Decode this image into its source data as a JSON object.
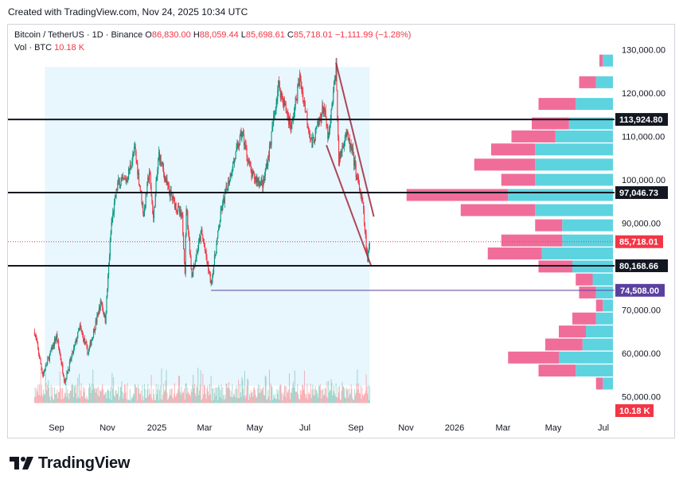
{
  "header": {
    "created": "Created with TradingView.com, Nov 24, 2025 10:34 UTC"
  },
  "legend": {
    "symbol": "Bitcoin / TetherUS · 1D · Binance",
    "o_label": "O",
    "o": "86,830.00",
    "h_label": "H",
    "h": "88,059.44",
    "l_label": "L",
    "l": "85,698.61",
    "c_label": "C",
    "c": "85,718.01",
    "change": "−1,111.99 (−1.28%)",
    "vol_label": "Vol · BTC",
    "vol": "10.18 K"
  },
  "colors": {
    "up": "#089981",
    "down": "#f23645",
    "profile_up": "#5ed3e0",
    "profile_down": "#f06d9a",
    "range_bg": "#e8f6fd"
  },
  "chart_data": {
    "type": "candlestick",
    "title": "Bitcoin / TetherUS · 1D · Binance",
    "xlabel": "",
    "ylabel": "",
    "x_ticks": [
      "Sep",
      "Nov",
      "2025",
      "Mar",
      "May",
      "Jul",
      "Sep",
      "Nov",
      "2026",
      "Mar",
      "May",
      "Jul"
    ],
    "y_ticks": [
      "130,000.00",
      "120,000.00",
      "110,000.00",
      "100,000.00",
      "90,000.00",
      "70,000.00",
      "60,000.00",
      "50,000.00"
    ],
    "ylim": [
      48000,
      132000
    ],
    "price_path": [
      [
        "2024-07-24",
        65000
      ],
      [
        "2024-08-05",
        55000
      ],
      [
        "2024-08-25",
        64000
      ],
      [
        "2024-09-06",
        53500
      ],
      [
        "2024-09-28",
        66000
      ],
      [
        "2024-10-10",
        60000
      ],
      [
        "2024-10-29",
        72000
      ],
      [
        "2024-11-04",
        67500
      ],
      [
        "2024-11-13",
        90000
      ],
      [
        "2024-11-22",
        99000
      ],
      [
        "2024-12-05",
        100000
      ],
      [
        "2024-12-17",
        107000
      ],
      [
        "2024-12-30",
        92000
      ],
      [
        "2025-01-07",
        102000
      ],
      [
        "2025-01-13",
        91000
      ],
      [
        "2025-01-21",
        106000
      ],
      [
        "2025-02-03",
        98000
      ],
      [
        "2025-02-24",
        91000
      ],
      [
        "2025-02-28",
        79000
      ],
      [
        "2025-03-02",
        94000
      ],
      [
        "2025-03-10",
        78000
      ],
      [
        "2025-03-24",
        88000
      ],
      [
        "2025-04-07",
        76000
      ],
      [
        "2025-04-22",
        93000
      ],
      [
        "2025-05-08",
        103000
      ],
      [
        "2025-05-22",
        111000
      ],
      [
        "2025-06-05",
        101000
      ],
      [
        "2025-06-22",
        99000
      ],
      [
        "2025-07-03",
        109000
      ],
      [
        "2025-07-14",
        122000
      ],
      [
        "2025-08-02",
        112000
      ],
      [
        "2025-08-14",
        123500
      ],
      [
        "2025-09-01",
        108000
      ],
      [
        "2025-09-18",
        117000
      ],
      [
        "2025-09-25",
        109000
      ],
      [
        "2025-10-06",
        126000
      ],
      [
        "2025-10-10",
        104000
      ],
      [
        "2025-10-20",
        111000
      ],
      [
        "2025-10-30",
        106000
      ],
      [
        "2025-11-05",
        101000
      ],
      [
        "2025-11-14",
        94000
      ],
      [
        "2025-11-21",
        81000
      ],
      [
        "2025-11-24",
        85718
      ]
    ],
    "levels": [
      {
        "label": "113,924.80",
        "value": 113924.8
      },
      {
        "label": "97,046.73",
        "value": 97046.73
      },
      {
        "label": "80,168.66",
        "value": 80168.66
      },
      {
        "label": "74,508.00",
        "value": 74508
      }
    ],
    "last_price": {
      "label": "85,718.01",
      "value": 85718.01
    },
    "last_volume": {
      "label": "10.18 K",
      "value": 10.18
    },
    "volume_profile": [
      {
        "price": 127500,
        "up": 1.5,
        "down": 0.5
      },
      {
        "price": 122500,
        "up": 2.5,
        "down": 2.5
      },
      {
        "price": 117500,
        "up": 5.5,
        "down": 5.5
      },
      {
        "price": 113000,
        "up": 6.5,
        "down": 5.5
      },
      {
        "price": 110000,
        "up": 8.5,
        "down": 6.5
      },
      {
        "price": 107000,
        "up": 11.5,
        "down": 6.5
      },
      {
        "price": 103500,
        "up": 11.5,
        "down": 9.0
      },
      {
        "price": 100000,
        "up": 11.5,
        "down": 5.0
      },
      {
        "price": 96500,
        "up": 15.5,
        "down": 15.0
      },
      {
        "price": 93000,
        "up": 11.5,
        "down": 11.0
      },
      {
        "price": 89500,
        "up": 7.5,
        "down": 4.0
      },
      {
        "price": 86000,
        "up": 7.5,
        "down": 9.0
      },
      {
        "price": 83000,
        "up": 10.5,
        "down": 8.0
      },
      {
        "price": 80000,
        "up": 6.0,
        "down": 5.0
      },
      {
        "price": 77000,
        "up": 3.0,
        "down": 2.5
      },
      {
        "price": 74000,
        "up": 2.5,
        "down": 2.5
      },
      {
        "price": 71000,
        "up": 1.5,
        "down": 1.0
      },
      {
        "price": 68000,
        "up": 2.5,
        "down": 3.5
      },
      {
        "price": 65000,
        "up": 4.0,
        "down": 4.0
      },
      {
        "price": 62000,
        "up": 4.5,
        "down": 5.5
      },
      {
        "price": 59000,
        "up": 8.0,
        "down": 7.5
      },
      {
        "price": 56000,
        "up": 5.5,
        "down": 5.5
      },
      {
        "price": 53000,
        "up": 1.5,
        "down": 1.0
      }
    ]
  },
  "footer": {
    "brand": "TradingView"
  }
}
